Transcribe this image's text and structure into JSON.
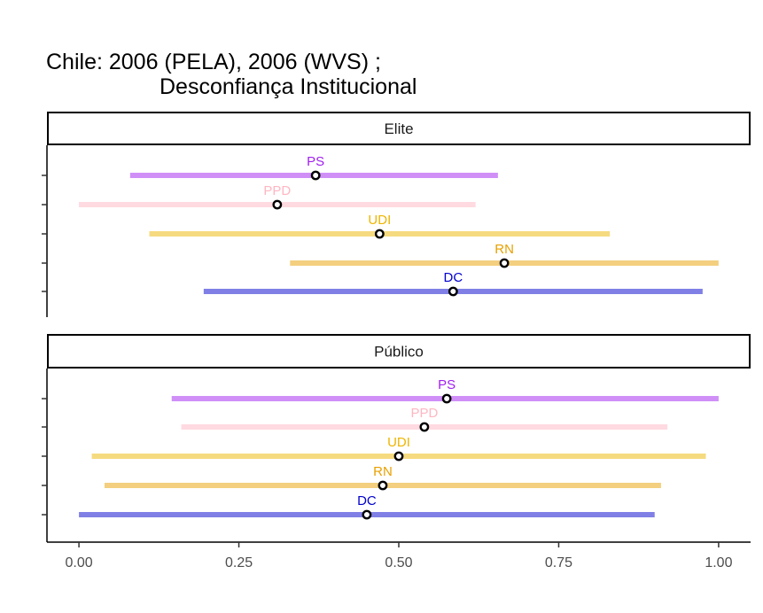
{
  "chart_data": {
    "type": "range-dot",
    "title_line1": "Chile: 2006 (PELA), 2006 (WVS) ;",
    "title_line2": "Desconfiança Institucional",
    "xlabel": "",
    "ylabel": "",
    "xlim": [
      -0.05,
      1.05
    ],
    "x_ticks": [
      0,
      0.25,
      0.5,
      0.75,
      1
    ],
    "x_tick_labels": [
      "0.00",
      "0.25",
      "0.50",
      "0.75",
      "1.00"
    ],
    "grid": false,
    "colors": {
      "PS": "#a020f0",
      "PPD": "#ffb6c1",
      "UDI": "#eeb500",
      "RN": "#e8a000",
      "DC": "#0000cd"
    },
    "panels": [
      {
        "label": "Elite",
        "series": [
          {
            "party": "PS",
            "low": 0.08,
            "high": 0.655,
            "point": 0.37
          },
          {
            "party": "PPD",
            "low": 0.0,
            "high": 0.62,
            "point": 0.31
          },
          {
            "party": "UDI",
            "low": 0.11,
            "high": 0.83,
            "point": 0.47
          },
          {
            "party": "RN",
            "low": 0.33,
            "high": 1.0,
            "point": 0.665
          },
          {
            "party": "DC",
            "low": 0.195,
            "high": 0.975,
            "point": 0.585
          }
        ]
      },
      {
        "label": "Público",
        "series": [
          {
            "party": "PS",
            "low": 0.145,
            "high": 1.0,
            "point": 0.575
          },
          {
            "party": "PPD",
            "low": 0.16,
            "high": 0.92,
            "point": 0.54
          },
          {
            "party": "UDI",
            "low": 0.02,
            "high": 0.98,
            "point": 0.5
          },
          {
            "party": "RN",
            "low": 0.04,
            "high": 0.91,
            "point": 0.475
          },
          {
            "party": "DC",
            "low": 0.0,
            "high": 0.9,
            "point": 0.45
          }
        ]
      }
    ]
  }
}
